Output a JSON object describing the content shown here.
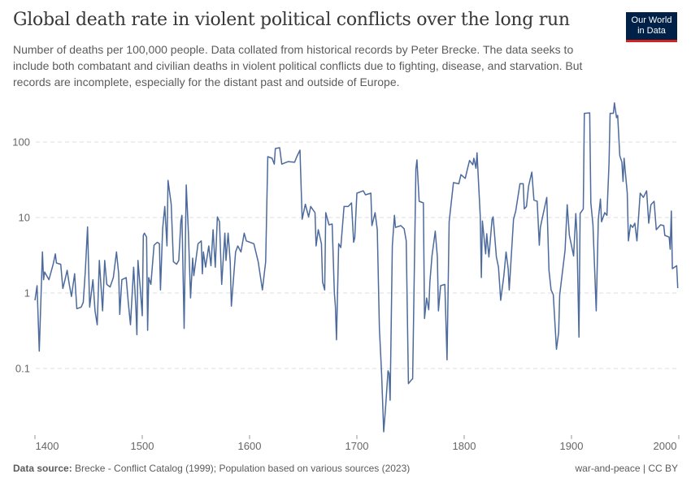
{
  "header": {
    "title": "Global death rate in violent political conflicts over the long run",
    "subtitle": "Number of deaths per 100,000 people. Data collated from historical records by Peter Brecke. The data seeks to include both combatant and civilian deaths in violent political conflicts due to fighting, disease, and starvation. But records are incomplete, especially for the distant past and outside of Europe.",
    "logo_line1": "Our World",
    "logo_line2": "in Data"
  },
  "footer": {
    "source_label": "Data source:",
    "source_text": "Brecke - Conflict Catalog (1999); Population based on various sources (2023)",
    "license": "war-and-peace | CC BY"
  },
  "colors": {
    "line": "#4c6a9c",
    "grid": "#dddddd",
    "logo_bg": "#002147",
    "logo_accent": "#ce261e"
  },
  "chart_data": {
    "type": "line",
    "title": "Global death rate in violent political conflicts over the long run",
    "y_scale": "log",
    "ylim": [
      0.013,
      340
    ],
    "xlim": [
      1400,
      2000
    ],
    "y_ticks": [
      {
        "v": 100,
        "label": "100"
      },
      {
        "v": 10,
        "label": "10"
      },
      {
        "v": 1,
        "label": "1"
      },
      {
        "v": 0.1,
        "label": "0.1"
      }
    ],
    "x_ticks": [
      {
        "v": 1400,
        "label": "1400"
      },
      {
        "v": 1500,
        "label": "1500"
      },
      {
        "v": 1600,
        "label": "1600"
      },
      {
        "v": 1700,
        "label": "1700"
      },
      {
        "v": 1800,
        "label": "1800"
      },
      {
        "v": 1900,
        "label": "1900"
      },
      {
        "v": 2000,
        "label": "2000"
      }
    ],
    "grid": "horizontal dashed",
    "series": [
      {
        "points": [
          [
            1400,
            0.8
          ],
          [
            1402,
            1.25
          ],
          [
            1404,
            0.17
          ],
          [
            1407,
            3.5
          ],
          [
            1408,
            1.5
          ],
          [
            1409,
            1.9
          ],
          [
            1413,
            1.5
          ],
          [
            1417,
            2.4
          ],
          [
            1419,
            3.3
          ],
          [
            1420,
            2.5
          ],
          [
            1424,
            2.4
          ],
          [
            1426,
            1.15
          ],
          [
            1428,
            1.5
          ],
          [
            1430,
            2.0
          ],
          [
            1432,
            1.3
          ],
          [
            1434,
            0.9
          ],
          [
            1437,
            1.8
          ],
          [
            1439,
            0.62
          ],
          [
            1443,
            0.65
          ],
          [
            1445,
            0.75
          ],
          [
            1447,
            2.0
          ],
          [
            1449,
            7.5
          ],
          [
            1451,
            0.65
          ],
          [
            1454,
            1.5
          ],
          [
            1456,
            0.58
          ],
          [
            1458,
            0.38
          ],
          [
            1460,
            2.7
          ],
          [
            1463,
            0.58
          ],
          [
            1465,
            2.7
          ],
          [
            1467,
            1.3
          ],
          [
            1470,
            1.2
          ],
          [
            1473,
            1.6
          ],
          [
            1476,
            3.5
          ],
          [
            1478,
            1.8
          ],
          [
            1479,
            0.52
          ],
          [
            1481,
            1.5
          ],
          [
            1485,
            1.6
          ],
          [
            1487,
            0.75
          ],
          [
            1489,
            0.38
          ],
          [
            1492,
            2.2
          ],
          [
            1494,
            0.65
          ],
          [
            1495,
            0.28
          ],
          [
            1496,
            2.7
          ],
          [
            1498,
            1.2
          ],
          [
            1500,
            0.5
          ],
          [
            1501,
            5.8
          ],
          [
            1502,
            6.2
          ],
          [
            1504,
            5.5
          ],
          [
            1505,
            0.32
          ],
          [
            1506,
            1.6
          ],
          [
            1508,
            1.3
          ],
          [
            1511,
            4.3
          ],
          [
            1514,
            4.7
          ],
          [
            1516,
            4.5
          ],
          [
            1517,
            1.1
          ],
          [
            1519,
            7.2
          ],
          [
            1521,
            14
          ],
          [
            1523,
            4.2
          ],
          [
            1524,
            31
          ],
          [
            1527,
            15
          ],
          [
            1529,
            2.6
          ],
          [
            1532,
            2.4
          ],
          [
            1534,
            2.7
          ],
          [
            1536,
            9
          ],
          [
            1537,
            10.7
          ],
          [
            1539,
            0.34
          ],
          [
            1541,
            27
          ],
          [
            1543,
            6.2
          ],
          [
            1545,
            0.86
          ],
          [
            1547,
            2.9
          ],
          [
            1548,
            1.7
          ],
          [
            1552,
            4.5
          ],
          [
            1555,
            4.9
          ],
          [
            1556,
            1.8
          ],
          [
            1557,
            3.5
          ],
          [
            1559,
            2.2
          ],
          [
            1562,
            4.2
          ],
          [
            1564,
            2.3
          ],
          [
            1566,
            6.9
          ],
          [
            1568,
            2.2
          ],
          [
            1570,
            10.2
          ],
          [
            1572,
            8.8
          ],
          [
            1574,
            1.3
          ],
          [
            1577,
            6.2
          ],
          [
            1578,
            2.7
          ],
          [
            1580,
            6.2
          ],
          [
            1582,
            2.6
          ],
          [
            1583,
            0.67
          ],
          [
            1587,
            3.5
          ],
          [
            1589,
            4.2
          ],
          [
            1592,
            3.5
          ],
          [
            1595,
            6.2
          ],
          [
            1597,
            4.9
          ],
          [
            1604,
            4.5
          ],
          [
            1608,
            2.6
          ],
          [
            1612,
            1.1
          ],
          [
            1615,
            2.6
          ],
          [
            1617,
            64
          ],
          [
            1621,
            61
          ],
          [
            1623,
            51
          ],
          [
            1624,
            82
          ],
          [
            1628,
            84
          ],
          [
            1630,
            51
          ],
          [
            1636,
            55
          ],
          [
            1642,
            54
          ],
          [
            1644,
            64
          ],
          [
            1647,
            78
          ],
          [
            1649,
            9.5
          ],
          [
            1652,
            15
          ],
          [
            1655,
            10.2
          ],
          [
            1657,
            14
          ],
          [
            1661,
            11.6
          ],
          [
            1662,
            4.2
          ],
          [
            1664,
            6.9
          ],
          [
            1667,
            4.5
          ],
          [
            1668,
            1.4
          ],
          [
            1670,
            1.1
          ],
          [
            1671,
            11.6
          ],
          [
            1674,
            8.0
          ],
          [
            1677,
            8.2
          ],
          [
            1679,
            1.0
          ],
          [
            1680,
            0.66
          ],
          [
            1681,
            0.24
          ],
          [
            1683,
            4.5
          ],
          [
            1685,
            4.0
          ],
          [
            1688,
            14
          ],
          [
            1692,
            14
          ],
          [
            1695,
            15.6
          ],
          [
            1697,
            4.7
          ],
          [
            1698,
            5.4
          ],
          [
            1700,
            21
          ],
          [
            1706,
            22.6
          ],
          [
            1708,
            20
          ],
          [
            1713,
            21
          ],
          [
            1714,
            7.8
          ],
          [
            1717,
            11.6
          ],
          [
            1719,
            6.9
          ],
          [
            1721,
            0.34
          ],
          [
            1723,
            0.086
          ],
          [
            1725,
            0.0145
          ],
          [
            1727,
            0.034
          ],
          [
            1729,
            0.093
          ],
          [
            1730,
            0.086
          ],
          [
            1731,
            0.038
          ],
          [
            1733,
            4.2
          ],
          [
            1735,
            10.7
          ],
          [
            1736,
            7.4
          ],
          [
            1741,
            7.8
          ],
          [
            1744,
            7.1
          ],
          [
            1746,
            4.9
          ],
          [
            1748,
            0.063
          ],
          [
            1751,
            0.071
          ],
          [
            1752,
            0.073
          ],
          [
            1755,
            44
          ],
          [
            1756,
            58
          ],
          [
            1758,
            16.4
          ],
          [
            1762,
            15.6
          ],
          [
            1763,
            0.46
          ],
          [
            1765,
            0.86
          ],
          [
            1767,
            0.6
          ],
          [
            1768,
            1.4
          ],
          [
            1770,
            3.1
          ],
          [
            1773,
            6.6
          ],
          [
            1775,
            3.0
          ],
          [
            1776,
            0.58
          ],
          [
            1778,
            1.25
          ],
          [
            1782,
            1.3
          ],
          [
            1784,
            0.13
          ],
          [
            1786,
            8.8
          ],
          [
            1790,
            29
          ],
          [
            1795,
            28
          ],
          [
            1797,
            37
          ],
          [
            1801,
            33
          ],
          [
            1803,
            44
          ],
          [
            1805,
            57
          ],
          [
            1808,
            50
          ],
          [
            1809,
            61
          ],
          [
            1811,
            45
          ],
          [
            1812,
            72
          ],
          [
            1815,
            10.2
          ],
          [
            1816,
            1.6
          ],
          [
            1817,
            9
          ],
          [
            1820,
            3.3
          ],
          [
            1821,
            6.1
          ],
          [
            1823,
            3.0
          ],
          [
            1826,
            9.5
          ],
          [
            1827,
            10.2
          ],
          [
            1830,
            3.0
          ],
          [
            1832,
            2.2
          ],
          [
            1834,
            0.8
          ],
          [
            1837,
            1.7
          ],
          [
            1839,
            3.5
          ],
          [
            1841,
            2.1
          ],
          [
            1842,
            1.1
          ],
          [
            1846,
            9.5
          ],
          [
            1848,
            12.2
          ],
          [
            1852,
            28
          ],
          [
            1855,
            28
          ],
          [
            1856,
            13
          ],
          [
            1858,
            14
          ],
          [
            1860,
            26
          ],
          [
            1863,
            40
          ],
          [
            1865,
            17
          ],
          [
            1868,
            16.4
          ],
          [
            1870,
            4.3
          ],
          [
            1871,
            7.4
          ],
          [
            1873,
            10.2
          ],
          [
            1877,
            18.5
          ],
          [
            1879,
            2.0
          ],
          [
            1881,
            1.1
          ],
          [
            1883,
            0.95
          ],
          [
            1886,
            0.18
          ],
          [
            1888,
            0.3
          ],
          [
            1889,
            0.95
          ],
          [
            1894,
            3.7
          ],
          [
            1896,
            14.8
          ],
          [
            1898,
            5.8
          ],
          [
            1902,
            3.1
          ],
          [
            1904,
            11.3
          ],
          [
            1905,
            6.2
          ],
          [
            1907,
            0.26
          ],
          [
            1908,
            11.3
          ],
          [
            1911,
            13
          ],
          [
            1912,
            240
          ],
          [
            1917,
            243
          ],
          [
            1918,
            15.6
          ],
          [
            1920,
            8
          ],
          [
            1923,
            0.58
          ],
          [
            1925,
            9.5
          ],
          [
            1927,
            17.6
          ],
          [
            1928,
            8.8
          ],
          [
            1931,
            11.6
          ],
          [
            1933,
            10.7
          ],
          [
            1935,
            54
          ],
          [
            1936,
            240
          ],
          [
            1939,
            240
          ],
          [
            1940,
            330
          ],
          [
            1942,
            210
          ],
          [
            1943,
            225
          ],
          [
            1945,
            66
          ],
          [
            1947,
            54
          ],
          [
            1948,
            30
          ],
          [
            1949,
            61
          ],
          [
            1952,
            21
          ],
          [
            1953,
            4.9
          ],
          [
            1955,
            8
          ],
          [
            1957,
            7.4
          ],
          [
            1959,
            8.4
          ],
          [
            1961,
            4.9
          ],
          [
            1964,
            21
          ],
          [
            1967,
            18.5
          ],
          [
            1970,
            22.6
          ],
          [
            1972,
            8.4
          ],
          [
            1974,
            14.8
          ],
          [
            1977,
            16.4
          ],
          [
            1979,
            6.9
          ],
          [
            1983,
            8
          ],
          [
            1986,
            7.8
          ],
          [
            1987,
            5.8
          ],
          [
            1991,
            5.5
          ],
          [
            1992,
            3.8
          ],
          [
            1993,
            12.2
          ],
          [
            1994,
            2.1
          ],
          [
            1998,
            2.3
          ],
          [
            1999,
            1.16
          ]
        ]
      }
    ]
  }
}
